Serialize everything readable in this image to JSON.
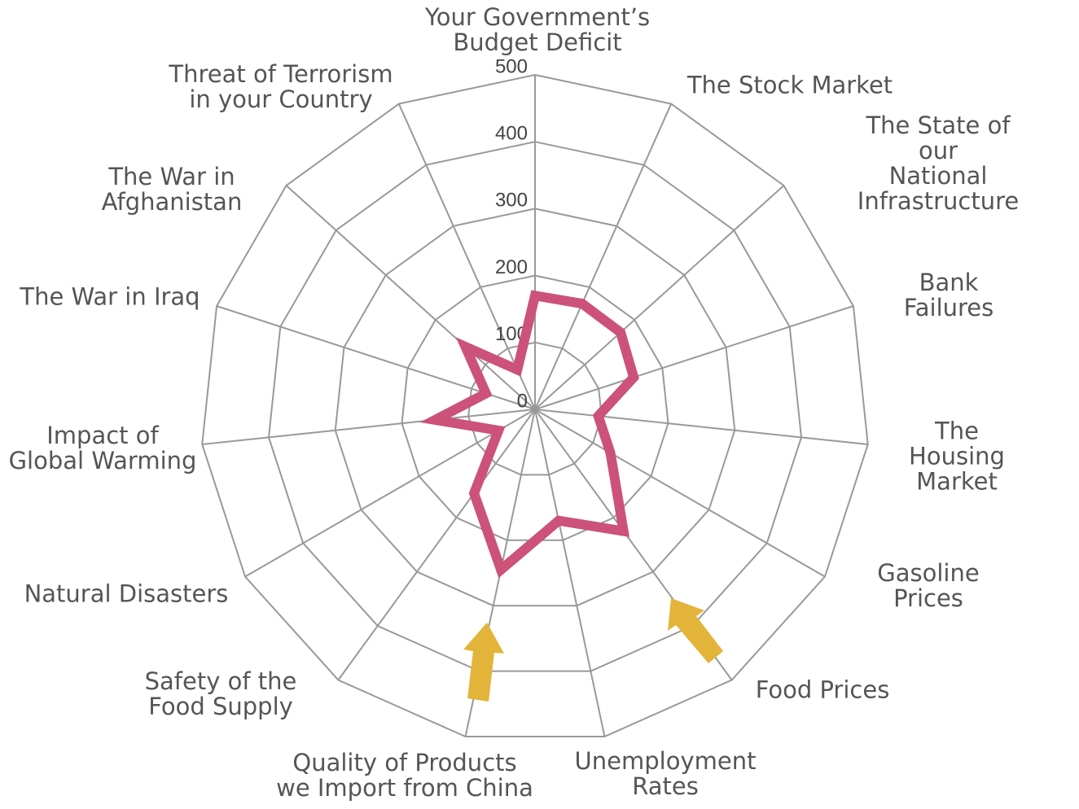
{
  "chart_data": {
    "type": "radar",
    "categories": [
      "Your Government’s\nBudget Deficit",
      "The Stock Market",
      "The State of our\nNational Infrastructure",
      "Bank Failures",
      "The Housing\nMarket",
      "Gasoline Prices",
      "Food Prices",
      "Unemployment\nRates",
      "Quality of Products\nwe Import from China",
      "Safety of the\nFood Supply",
      "Natural Disasters",
      "Impact of\nGlobal Warming",
      "The War in Iraq",
      "The War in\nAfghanistan",
      "Threat of Terrorism\nin your Country"
    ],
    "values": [
      170,
      173,
      172,
      155,
      95,
      130,
      225,
      170,
      245,
      155,
      63,
      150,
      77,
      140,
      65
    ],
    "color": "#cc5279",
    "ylim": [
      0,
      500
    ],
    "yticks": [
      0,
      100,
      200,
      300,
      400,
      500
    ],
    "grid": true
  }
}
